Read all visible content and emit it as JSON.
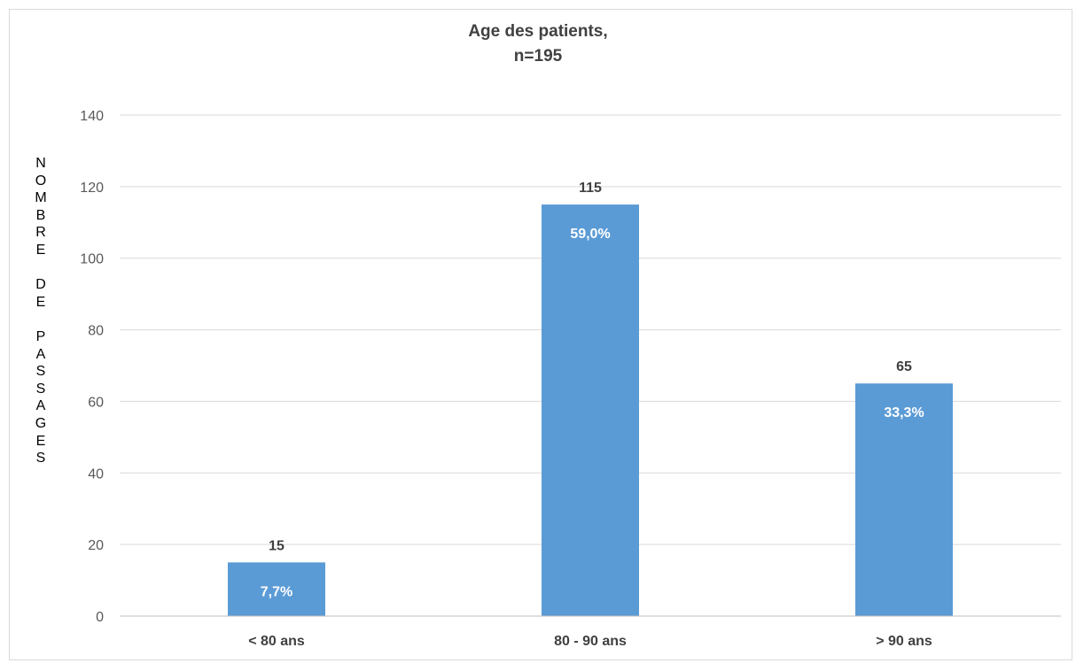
{
  "chart_data": {
    "type": "bar",
    "title_lines": [
      "Age des patients,",
      "n=195"
    ],
    "ylabel": "NOMBRE DE PASSAGES",
    "xlabel": "",
    "categories": [
      "< 80 ans",
      "80 - 90 ans",
      "> 90 ans"
    ],
    "values": [
      15,
      115,
      65
    ],
    "percent_labels": [
      "7,7%",
      "59,0%",
      "33,3%"
    ],
    "ylim": [
      0,
      140
    ],
    "yticks": [
      0,
      20,
      40,
      60,
      80,
      100,
      120,
      140
    ],
    "grid": true,
    "legend": "none",
    "colors": {
      "bar": "#5b9bd5",
      "grid": "#d9d9d9",
      "axis": "#bfbfbf"
    }
  }
}
